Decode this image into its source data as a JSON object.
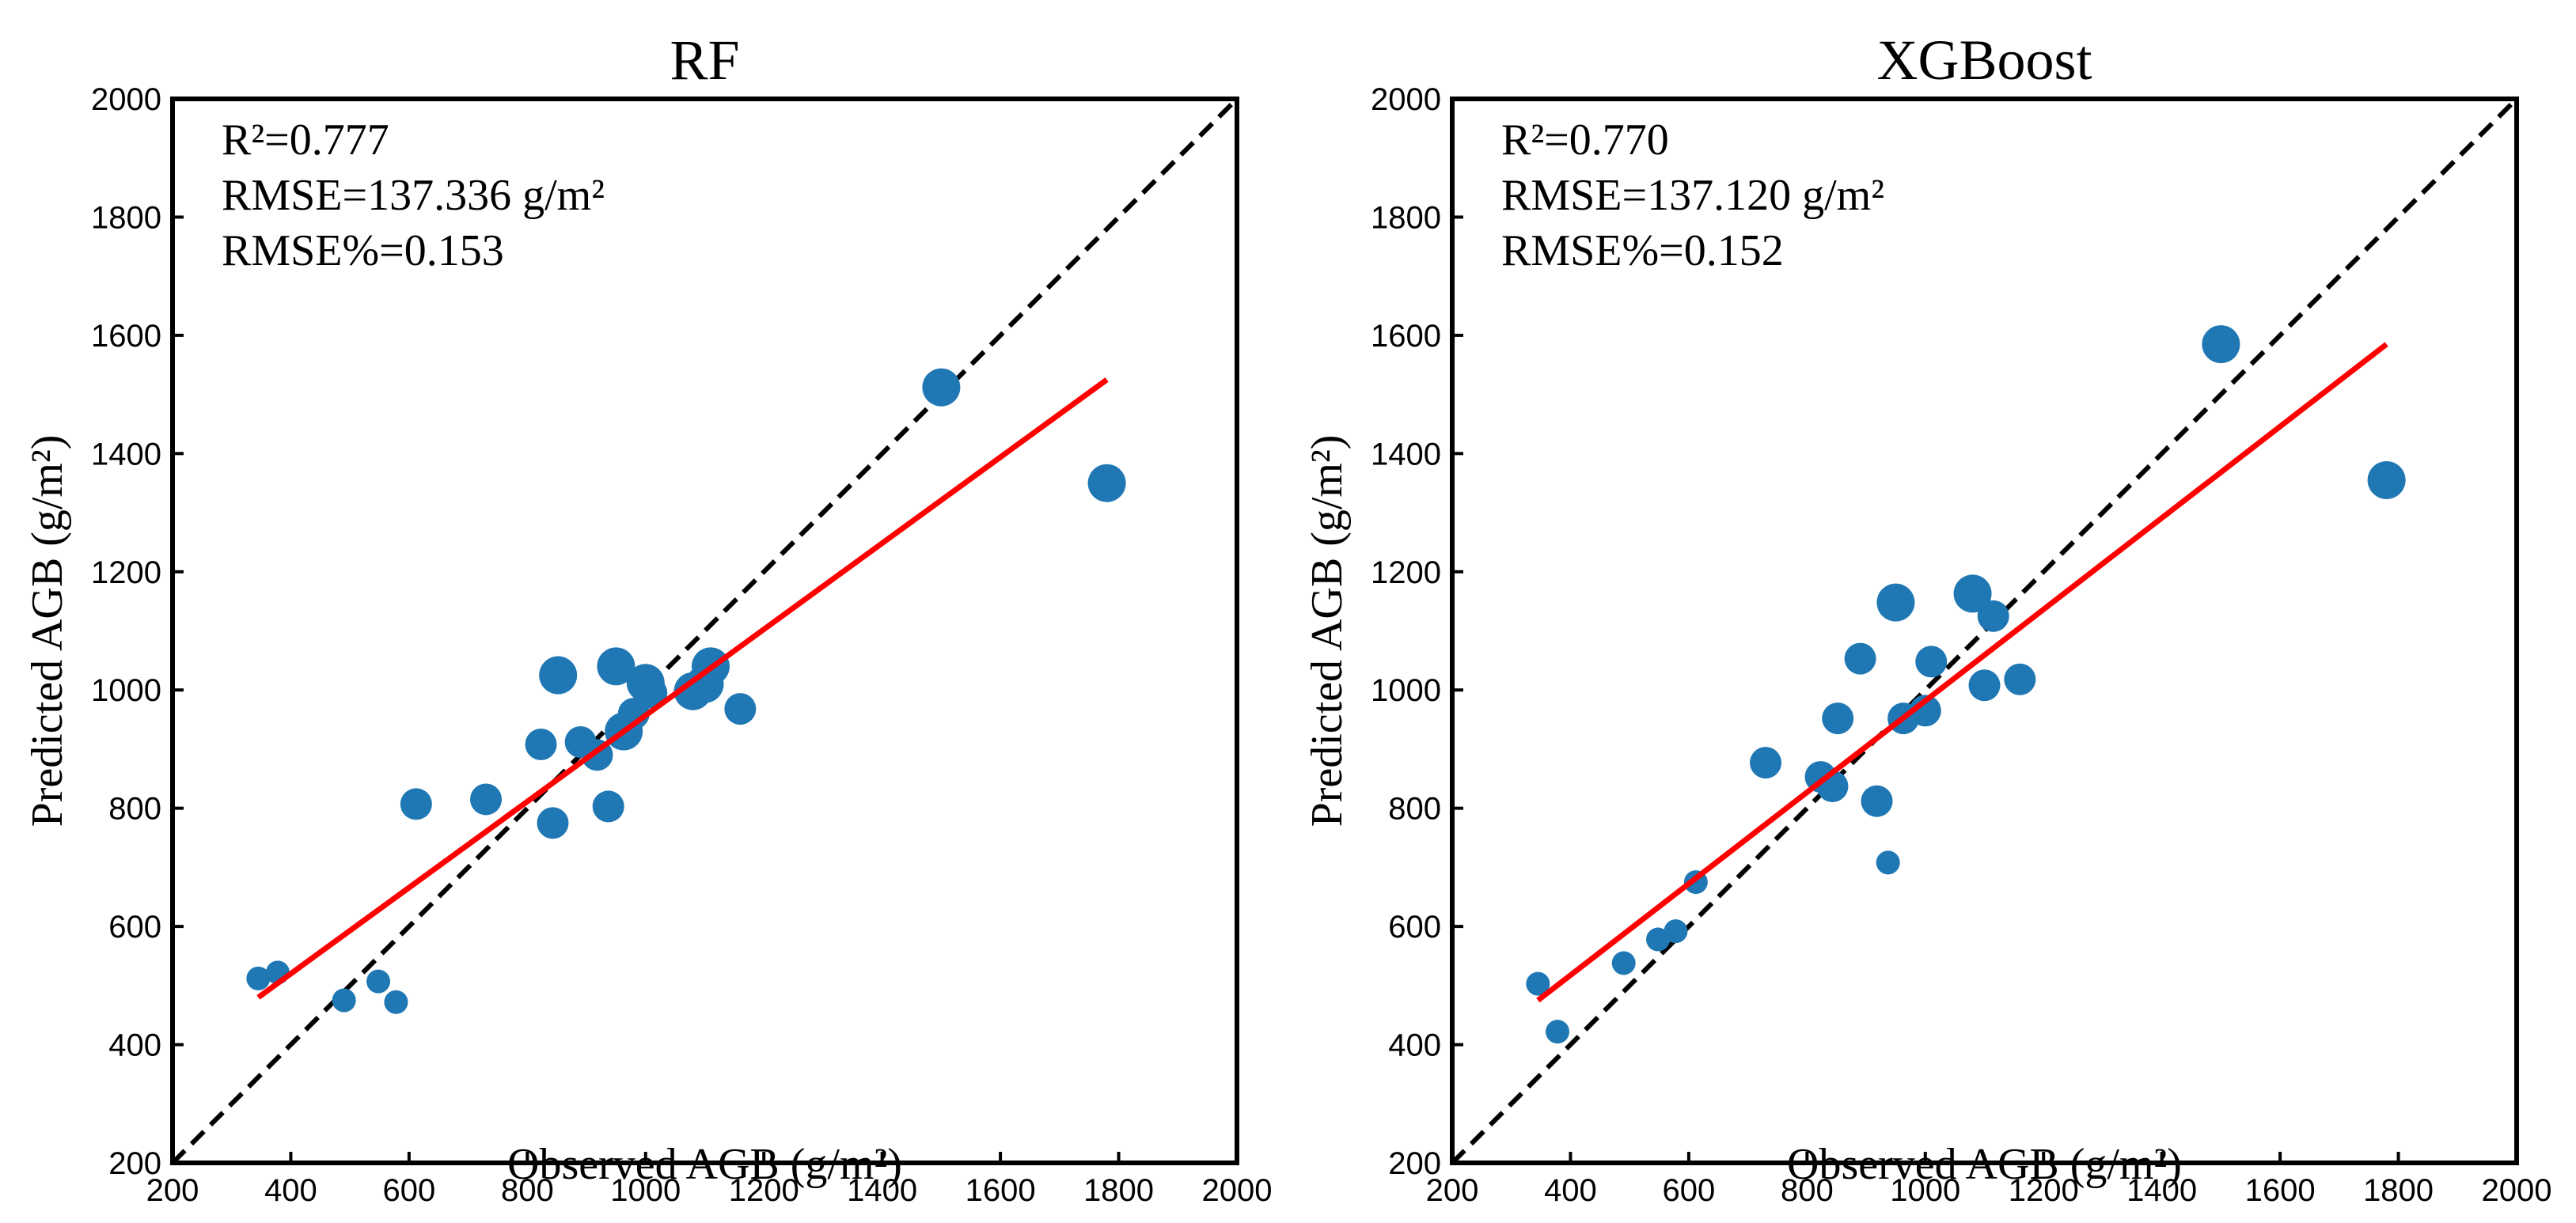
{
  "chart_data": [
    {
      "type": "scatter",
      "title": "RF",
      "xlabel": "Observed AGB (g/m²)",
      "ylabel": "Predicted AGB (g/m²)",
      "xlim": [
        200,
        2000
      ],
      "ylim": [
        200,
        2000
      ],
      "xticks": [
        200,
        400,
        600,
        800,
        1000,
        1200,
        1400,
        1600,
        1800,
        2000
      ],
      "yticks": [
        200,
        400,
        600,
        800,
        1000,
        1200,
        1400,
        1600,
        1800,
        2000
      ],
      "stats": [
        "R²=0.777",
        "RMSE=137.336 g/m²",
        "RMSE%=0.153"
      ],
      "point_color": "#1f77b4",
      "one_to_one_line": {
        "from": [
          200,
          200
        ],
        "to": [
          2000,
          2000
        ],
        "color": "#000000",
        "style": "dashed"
      },
      "fit_line": {
        "from": [
          345,
          480
        ],
        "to": [
          1780,
          1525
        ],
        "color": "#ff0000"
      },
      "points": [
        {
          "x": 345,
          "y": 512,
          "s": 1
        },
        {
          "x": 378,
          "y": 522,
          "s": 1
        },
        {
          "x": 490,
          "y": 475,
          "s": 1
        },
        {
          "x": 548,
          "y": 507,
          "s": 1
        },
        {
          "x": 578,
          "y": 472,
          "s": 1
        },
        {
          "x": 612,
          "y": 807,
          "s": 2
        },
        {
          "x": 730,
          "y": 815,
          "s": 2
        },
        {
          "x": 823,
          "y": 908,
          "s": 2
        },
        {
          "x": 843,
          "y": 775,
          "s": 2
        },
        {
          "x": 852,
          "y": 1025,
          "s": 3
        },
        {
          "x": 890,
          "y": 912,
          "s": 2
        },
        {
          "x": 918,
          "y": 890,
          "s": 2
        },
        {
          "x": 937,
          "y": 803,
          "s": 2
        },
        {
          "x": 950,
          "y": 1040,
          "s": 3
        },
        {
          "x": 963,
          "y": 930,
          "s": 3
        },
        {
          "x": 980,
          "y": 960,
          "s": 2
        },
        {
          "x": 1000,
          "y": 1012,
          "s": 3
        },
        {
          "x": 1010,
          "y": 995,
          "s": 2
        },
        {
          "x": 1080,
          "y": 998,
          "s": 3
        },
        {
          "x": 1100,
          "y": 1010,
          "s": 3
        },
        {
          "x": 1110,
          "y": 1040,
          "s": 3
        },
        {
          "x": 1160,
          "y": 968,
          "s": 2
        },
        {
          "x": 1500,
          "y": 1512,
          "s": 3
        },
        {
          "x": 1780,
          "y": 1350,
          "s": 3
        }
      ]
    },
    {
      "type": "scatter",
      "title": "XGBoost",
      "xlabel": "Observed AGB (g/m²)",
      "ylabel": "Predicted AGB (g/m²)",
      "xlim": [
        200,
        2000
      ],
      "ylim": [
        200,
        2000
      ],
      "xticks": [
        200,
        400,
        600,
        800,
        1000,
        1200,
        1400,
        1600,
        1800,
        2000
      ],
      "yticks": [
        200,
        400,
        600,
        800,
        1000,
        1200,
        1400,
        1600,
        1800,
        2000
      ],
      "stats": [
        "R²=0.770",
        "RMSE=137.120 g/m²",
        "RMSE%=0.152"
      ],
      "point_color": "#1f77b4",
      "one_to_one_line": {
        "from": [
          200,
          200
        ],
        "to": [
          2000,
          2000
        ],
        "color": "#000000",
        "style": "dashed"
      },
      "fit_line": {
        "from": [
          345,
          475
        ],
        "to": [
          1780,
          1585
        ],
        "color": "#ff0000"
      },
      "points": [
        {
          "x": 345,
          "y": 503,
          "s": 1
        },
        {
          "x": 378,
          "y": 422,
          "s": 1
        },
        {
          "x": 490,
          "y": 538,
          "s": 1
        },
        {
          "x": 548,
          "y": 578,
          "s": 1
        },
        {
          "x": 578,
          "y": 592,
          "s": 1
        },
        {
          "x": 612,
          "y": 675,
          "s": 1
        },
        {
          "x": 730,
          "y": 877,
          "s": 2
        },
        {
          "x": 823,
          "y": 853,
          "s": 2
        },
        {
          "x": 843,
          "y": 837,
          "s": 2
        },
        {
          "x": 852,
          "y": 952,
          "s": 2
        },
        {
          "x": 890,
          "y": 1053,
          "s": 2
        },
        {
          "x": 918,
          "y": 812,
          "s": 2
        },
        {
          "x": 937,
          "y": 708,
          "s": 1
        },
        {
          "x": 950,
          "y": 1148,
          "s": 3
        },
        {
          "x": 963,
          "y": 952,
          "s": 2
        },
        {
          "x": 1000,
          "y": 965,
          "s": 2
        },
        {
          "x": 1010,
          "y": 1048,
          "s": 2
        },
        {
          "x": 1080,
          "y": 1163,
          "s": 3
        },
        {
          "x": 1100,
          "y": 1008,
          "s": 2
        },
        {
          "x": 1115,
          "y": 1125,
          "s": 2
        },
        {
          "x": 1160,
          "y": 1018,
          "s": 2
        },
        {
          "x": 1500,
          "y": 1585,
          "s": 3
        },
        {
          "x": 1780,
          "y": 1355,
          "s": 3
        }
      ]
    }
  ]
}
